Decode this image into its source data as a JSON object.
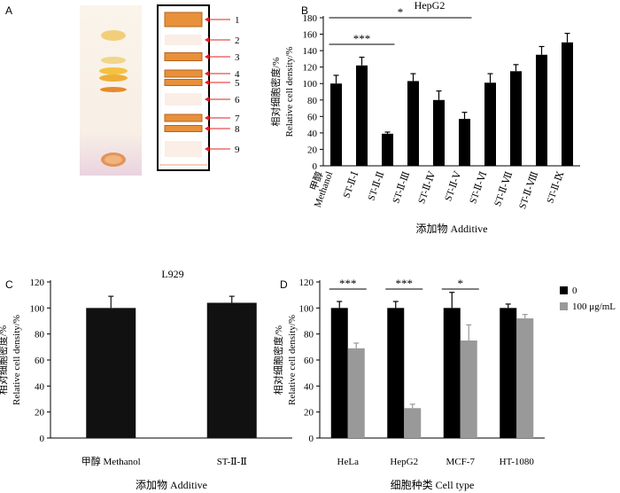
{
  "panels": {
    "A": {
      "letter": "A",
      "band_numbers": [
        "1",
        "2",
        "3",
        "4",
        "5",
        "6",
        "7",
        "8",
        "9"
      ]
    }
  },
  "chart_data": [
    {
      "panel": "B",
      "type": "bar",
      "title": "HepG2",
      "ylabel_cn": "相对细胞密度",
      "ylabel": "Relative cell density/%",
      "xlabel": "添加物 Additive",
      "ylim": [
        0,
        180
      ],
      "yticks": [
        0,
        20,
        40,
        60,
        80,
        100,
        120,
        140,
        160,
        180
      ],
      "categories": [
        "甲醇\nMethanol",
        "ST-Ⅱ-Ⅰ",
        "ST-Ⅱ-Ⅱ",
        "ST-Ⅱ-Ⅲ",
        "ST-Ⅱ-Ⅳ",
        "ST-Ⅱ-Ⅴ",
        "ST-Ⅱ-Ⅵ",
        "ST-Ⅱ-Ⅶ",
        "ST-Ⅱ-Ⅷ",
        "ST-Ⅱ-Ⅸ"
      ],
      "values": [
        100,
        122,
        39,
        103,
        80,
        57,
        101,
        115,
        135,
        150
      ],
      "errors": [
        10,
        10,
        2,
        9,
        11,
        8,
        11,
        8,
        10,
        11
      ],
      "color": "#000000",
      "annotations": [
        {
          "label": "***",
          "from": 0,
          "to": 2
        },
        {
          "label": "*",
          "from": 0,
          "to": 5
        }
      ]
    },
    {
      "panel": "C",
      "type": "bar",
      "title": "L929",
      "ylabel_cn": "相对细胞密度",
      "ylabel": "Relative cell density/%",
      "xlabel": "添加物 Additive",
      "ylim": [
        0,
        120
      ],
      "yticks": [
        0,
        20,
        40,
        60,
        80,
        100,
        120
      ],
      "categories": [
        "甲醇 Methanol",
        "ST-Ⅱ-Ⅱ"
      ],
      "values": [
        100,
        104
      ],
      "errors": [
        9,
        5
      ],
      "color": "#111111"
    },
    {
      "panel": "D",
      "type": "bar",
      "title": "",
      "ylabel_cn": "相对细胞密度",
      "ylabel": "Relative cell density/%",
      "xlabel": "细胞种类 Cell type",
      "ylim": [
        0,
        120
      ],
      "yticks": [
        0,
        20,
        40,
        60,
        80,
        100,
        120
      ],
      "categories": [
        "HeLa",
        "HepG2",
        "MCF-7",
        "HT-1080"
      ],
      "series": [
        {
          "name": "0",
          "values": [
            100,
            100,
            100,
            100
          ],
          "errors": [
            5,
            5,
            12,
            3
          ],
          "color": "#000000"
        },
        {
          "name": "100 μg/mL",
          "values": [
            69,
            23,
            75,
            92
          ],
          "errors": [
            4,
            3,
            12,
            3
          ],
          "color": "#999999"
        }
      ],
      "annotations": [
        {
          "label": "***",
          "category": 0
        },
        {
          "label": "***",
          "category": 1
        },
        {
          "label": "*",
          "category": 2
        }
      ],
      "legend": "top-right"
    }
  ]
}
